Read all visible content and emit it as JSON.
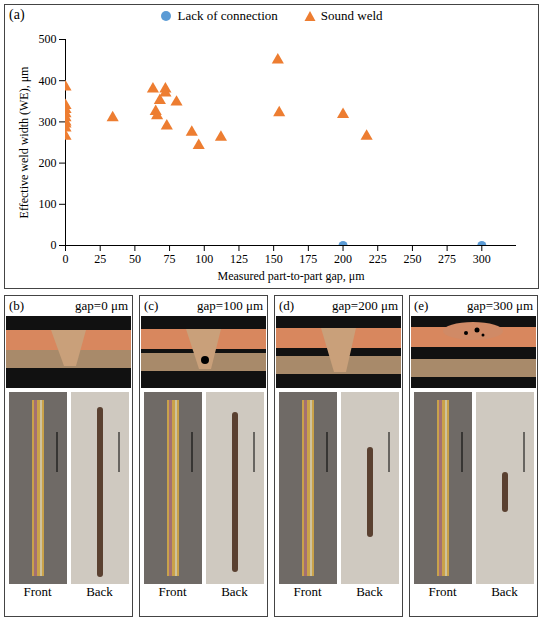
{
  "chart_data": {
    "type": "scatter",
    "label": "(a)",
    "x_label": "Measured part-to-part gap, μm",
    "y_label": "Effective weld width (WE), μm",
    "xlim": [
      0,
      325
    ],
    "xticks": [
      0,
      25,
      50,
      75,
      100,
      125,
      150,
      175,
      200,
      225,
      250,
      275,
      300
    ],
    "ylim": [
      0,
      500
    ],
    "yticks": [
      0,
      100,
      200,
      300,
      400,
      500
    ],
    "grid": false,
    "legend": "top",
    "series": [
      {
        "name": "Lack of connection",
        "color": "#5b9bd5",
        "marker": "circle",
        "x": [
          200,
          300
        ],
        "values": [
          0,
          0
        ]
      },
      {
        "name": "Sound weld",
        "color": "#ed7d31",
        "marker": "triangle",
        "x": [
          0,
          0,
          0,
          0,
          0,
          0,
          0,
          0,
          0,
          34,
          63,
          65,
          66,
          68,
          72,
          72,
          73,
          80,
          91,
          96,
          112,
          153,
          154,
          200,
          217
        ],
        "values": [
          385,
          340,
          330,
          320,
          310,
          300,
          295,
          285,
          265,
          310,
          380,
          325,
          315,
          352,
          380,
          370,
          290,
          348,
          275,
          243,
          263,
          450,
          322,
          318,
          265
        ]
      }
    ]
  },
  "panels": [
    {
      "label": "(b)",
      "title": "gap=0 μm",
      "views": [
        "Front",
        "Back"
      ]
    },
    {
      "label": "(c)",
      "title": "gap=100 μm",
      "views": [
        "Front",
        "Back"
      ]
    },
    {
      "label": "(d)",
      "title": "gap=200 μm",
      "views": [
        "Front",
        "Back"
      ]
    },
    {
      "label": "(e)",
      "title": "gap=300 μm",
      "views": [
        "Front",
        "Back"
      ]
    }
  ]
}
